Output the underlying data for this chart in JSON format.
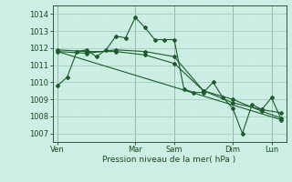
{
  "background_color": "#cceee4",
  "grid_color_major": "#aaccbb",
  "grid_color_minor": "#ddf0ea",
  "line_color": "#1a5c2a",
  "marker_color": "#1a5c2a",
  "xlabel": "Pression niveau de la mer( hPa )",
  "ylim": [
    1006.5,
    1014.5
  ],
  "xlim": [
    0,
    48
  ],
  "yticks": [
    1007,
    1008,
    1009,
    1010,
    1011,
    1012,
    1013,
    1014
  ],
  "x_day_labels": [
    "Ven",
    "Mar",
    "Sam",
    "Dim",
    "Lun"
  ],
  "x_day_positions": [
    1,
    17,
    25,
    37,
    45
  ],
  "vlines": [
    1,
    17,
    25,
    37,
    45
  ],
  "series1": {
    "x": [
      1,
      3,
      5,
      7,
      9,
      11,
      13,
      15,
      17,
      19,
      21,
      23,
      25,
      27,
      29,
      31,
      33,
      35,
      37,
      39,
      41,
      43,
      45,
      47
    ],
    "y": [
      1009.8,
      1010.3,
      1011.8,
      1011.9,
      1011.5,
      1011.9,
      1012.7,
      1012.6,
      1013.8,
      1013.2,
      1012.5,
      1012.5,
      1012.5,
      1009.6,
      1009.4,
      1009.4,
      1010.0,
      1009.1,
      1008.5,
      1007.0,
      1008.7,
      1008.4,
      1009.1,
      1007.8
    ]
  },
  "series2": {
    "x": [
      1,
      7,
      13,
      19,
      25,
      31,
      37,
      43,
      47
    ],
    "y": [
      1011.8,
      1011.7,
      1011.9,
      1011.8,
      1011.5,
      1009.5,
      1009.0,
      1008.3,
      1007.9
    ]
  },
  "series3": {
    "x": [
      1,
      7,
      13,
      19,
      25,
      31,
      37,
      43,
      47
    ],
    "y": [
      1011.9,
      1011.8,
      1011.8,
      1011.6,
      1011.1,
      1009.5,
      1008.8,
      1008.4,
      1008.2
    ]
  },
  "series4": {
    "x": [
      1,
      47
    ],
    "y": [
      1011.8,
      1007.8
    ]
  }
}
